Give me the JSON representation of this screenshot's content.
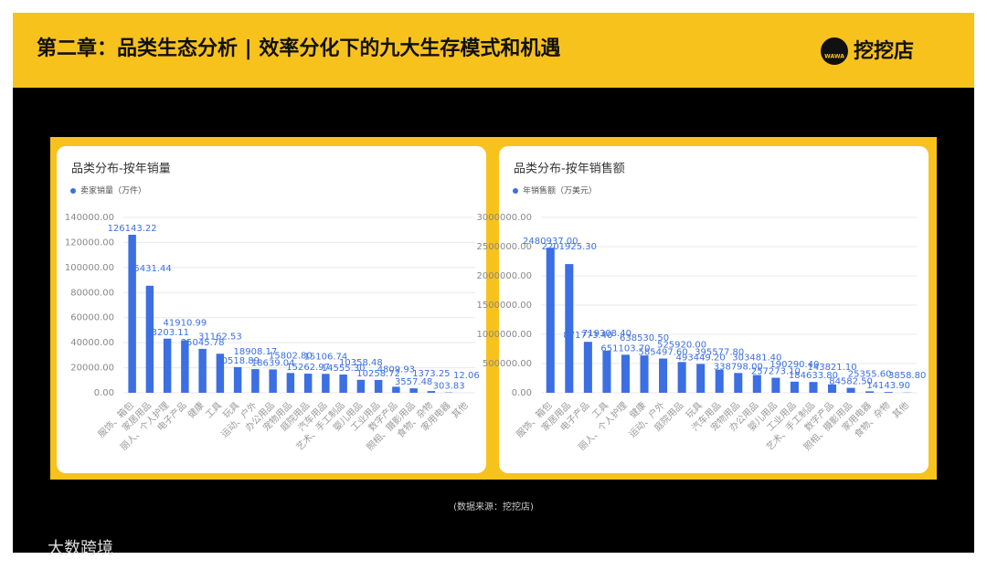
{
  "header": {
    "title": "第二章：品类生态分析 | 效率分化下的九大生存模式和机遇",
    "logo_icon": "WAWA",
    "logo": "挖挖店"
  },
  "source": "(数据来源：挖挖店)",
  "watermark": "大数跨境",
  "chart_data": [
    {
      "type": "bar",
      "title": "品类分布-按年销量",
      "categories": [
        "服饰、箱包",
        "家居用品",
        "丽人、个人护理",
        "电子产品",
        "健康",
        "工具",
        "玩具",
        "运动、户外",
        "办公用品",
        "宠物用品",
        "庭院用品",
        "汽车用品",
        "艺术、手工制品",
        "婴儿用品",
        "工业用品",
        "数字产品",
        "照相、摄影用品",
        "食物、杂物",
        "家用电器",
        "其他"
      ],
      "series": [
        {
          "name": "卖家销量（万件）",
          "color": "#3b6fe2",
          "values": [
            126143.22,
            85431.44,
            43203.11,
            41910.99,
            35045.78,
            31162.53,
            20518.89,
            18908.17,
            18639.04,
            15802.8,
            15262.97,
            15106.74,
            14555.3,
            10358.48,
            10258.72,
            4809.93,
            3557.48,
            1373.25,
            303.83,
            12.06
          ],
          "value_labels": [
            "126143.22",
            "85431.44",
            "43203.11",
            "41910.99",
            "35045.78",
            "31162.53",
            "20518.89",
            "18908.17",
            "18639.04",
            "15802.80",
            "15262.97",
            "15106.74",
            "14555.30",
            "10358.48",
            "10258.72",
            "4809.93",
            "3557.48",
            "1373.25",
            "303.83",
            "12.06"
          ]
        }
      ],
      "ylim": [
        0,
        140000
      ],
      "yticks": [
        {
          "value": 0,
          "label": "0.00"
        },
        {
          "value": 20000,
          "label": "20000.00"
        },
        {
          "value": 40000,
          "label": "40000.00"
        },
        {
          "value": 60000,
          "label": "60000.00"
        },
        {
          "value": 80000,
          "label": "80000.00"
        },
        {
          "value": 100000,
          "label": "100000.00"
        },
        {
          "value": 120000,
          "label": "120000.00"
        },
        {
          "value": 140000,
          "label": "140000.00"
        }
      ],
      "grid": true
    },
    {
      "type": "bar",
      "title": "品类分布-按年销售额",
      "categories": [
        "服饰、箱包",
        "家居用品",
        "电子产品",
        "工具",
        "丽人、个人护理",
        "健康",
        "运动、户外",
        "庭院用品",
        "玩具",
        "汽车用品",
        "宠物用品",
        "办公用品",
        "婴儿用品",
        "工业用品",
        "艺术、手工制品",
        "数字产品",
        "照相、摄影用品",
        "家用电器",
        "食物、杂物",
        "其他"
      ],
      "series": [
        {
          "name": "年销售额（万美元）",
          "color": "#3b6fe2",
          "values": [
            2480937,
            2201925.3,
            871773.4,
            719308.4,
            651103.7,
            638530.5,
            585497.6,
            525920,
            493449.2,
            395577.8,
            338798,
            303481.4,
            257273.1,
            190290.4,
            184633.8,
            143821.1,
            84582.5,
            25355.6,
            14143.9,
            3858.8
          ],
          "value_labels": [
            "2480937.00",
            "2201925.30",
            "871773.40",
            "719308.40",
            "651103.70",
            "638530.50",
            "585497.60",
            "525920.00",
            "493449.20",
            "395577.80",
            "338798.00",
            "303481.40",
            "257273.10",
            "190290.40",
            "184633.80",
            "143821.10",
            "84582.50",
            "25355.60",
            "14143.90",
            "3858.80"
          ]
        }
      ],
      "ylim": [
        0,
        3000000
      ],
      "yticks": [
        {
          "value": 0,
          "label": "0.00"
        },
        {
          "value": 500000,
          "label": "500000.00"
        },
        {
          "value": 1000000,
          "label": "1000000.00"
        },
        {
          "value": 1500000,
          "label": "1500000.00"
        },
        {
          "value": 2000000,
          "label": "2000000.00"
        },
        {
          "value": 2500000,
          "label": "2500000.00"
        },
        {
          "value": 3000000,
          "label": "3000000.00"
        }
      ],
      "grid": true
    }
  ]
}
